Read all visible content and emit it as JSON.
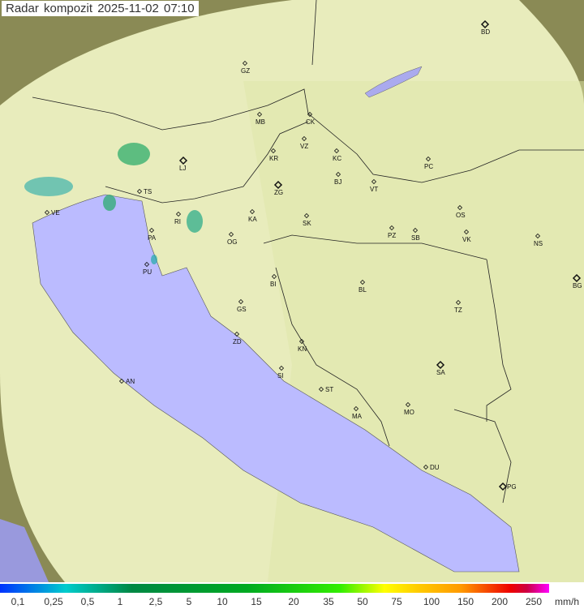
{
  "title": "Radar kompozit  2025-11-02   07:10",
  "colors": {
    "sea": "#bbbbff",
    "land": "#d9d99a",
    "outside": "#8a8a55",
    "radar_overlay": "#eef5d0"
  },
  "cities": [
    "GZ",
    "BD",
    "MB",
    "CK",
    "VZ",
    "KR",
    "KC",
    "LJ",
    "PC",
    "ZG",
    "BJ",
    "VT",
    "TS",
    "VE",
    "KA",
    "SK",
    "OS",
    "RI",
    "PA",
    "OG",
    "PZ",
    "SB",
    "VK",
    "NS",
    "PU",
    "BI",
    "BL",
    "BG",
    "GS",
    "TZ",
    "ZD",
    "KN",
    "SA",
    "SI",
    "AN",
    "ST",
    "MA",
    "MO",
    "DU",
    "PG"
  ],
  "legend": {
    "labels": [
      "0,1",
      "0,25",
      "0,5",
      "1",
      "2,5",
      "5",
      "10",
      "15",
      "20",
      "35",
      "50",
      "75",
      "100",
      "150",
      "200",
      "250"
    ],
    "unit": "mm/h"
  }
}
